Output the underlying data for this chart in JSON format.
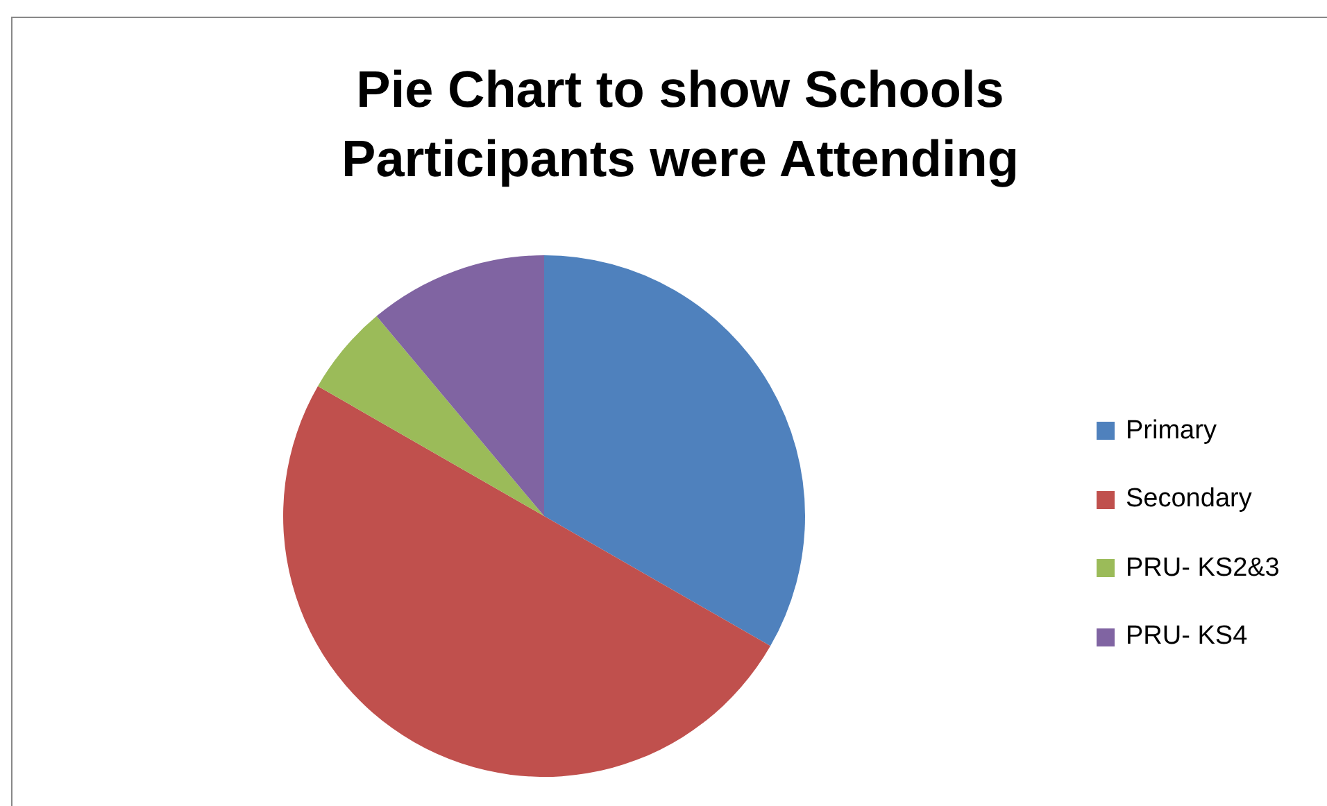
{
  "chart_data": {
    "type": "pie",
    "title": "Pie Chart to show Schools Participants were Attending",
    "categories": [
      "Primary",
      "Secondary",
      "PRU- KS2&3",
      "PRU- KS4"
    ],
    "values": [
      33.3,
      50,
      5.6,
      11.1
    ],
    "colors": [
      "#4f81bd",
      "#c0504d",
      "#9bbb59",
      "#8064a2"
    ],
    "legend": "right"
  }
}
